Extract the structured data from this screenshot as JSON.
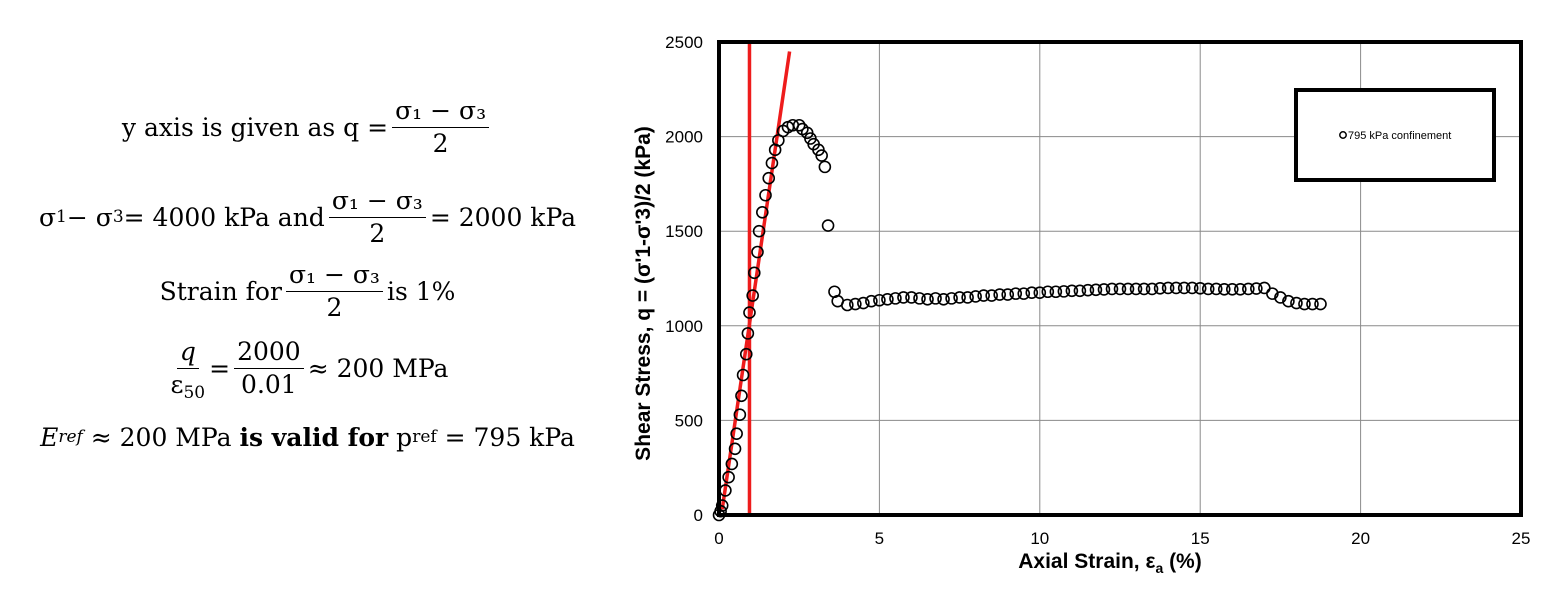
{
  "equations": {
    "l1_prefix": "y axis is given as q =",
    "l1_num": "σ₁ − σ₃",
    "l1_den": "2",
    "l2_a": "σ",
    "l2_a_sub": "1",
    "l2_b": " − σ",
    "l2_b_sub": "3",
    "l2_c": " = 4000 kPa and",
    "l2_num": "σ₁ − σ₃",
    "l2_den": "2",
    "l2_d": "= 2000 kPa",
    "l3_prefix": "Strain for",
    "l3_num": "σ₁ − σ₃",
    "l3_den": "2",
    "l3_suffix": "is 1%",
    "l4_num1": "q",
    "l4_den1": "ε",
    "l4_den1_sub": "50",
    "l4_eq": "=",
    "l4_num2": "2000",
    "l4_den2": "0.01",
    "l4_suffix": "≈ 200 MPa",
    "l5_E": "E",
    "l5_E_sub": "ref",
    "l5_a": " ≈ 200 MPa ",
    "l5_bold": "is valid for",
    "l5_p": " p",
    "l5_p_sub": "ref",
    "l5_b": " = 795 kPa"
  },
  "chart_data": {
    "type": "scatter",
    "xlabel": "Axial Strain, ε",
    "xlabel_sub": "a",
    "xlabel_suffix": " (%)",
    "ylabel": "Shear Stress, q = (σ'1-σ'3)/2 (kPa)",
    "xlim": [
      0,
      25
    ],
    "ylim": [
      0,
      2500
    ],
    "xticks": [
      0,
      5,
      10,
      15,
      20,
      25
    ],
    "yticks": [
      0,
      500,
      1000,
      1500,
      2000,
      2500
    ],
    "grid": true,
    "legend_position": "top-right",
    "legend_entries": [
      "795 kPa confinement"
    ],
    "series": [
      {
        "name": "795 kPa confinement",
        "marker": "open-circle",
        "color": "#000000",
        "points": [
          [
            0,
            0
          ],
          [
            0.05,
            20
          ],
          [
            0.1,
            50
          ],
          [
            0.2,
            130
          ],
          [
            0.3,
            200
          ],
          [
            0.4,
            270
          ],
          [
            0.5,
            350
          ],
          [
            0.55,
            430
          ],
          [
            0.65,
            530
          ],
          [
            0.7,
            630
          ],
          [
            0.75,
            740
          ],
          [
            0.85,
            850
          ],
          [
            0.9,
            960
          ],
          [
            0.95,
            1070
          ],
          [
            1.05,
            1160
          ],
          [
            1.1,
            1280
          ],
          [
            1.2,
            1390
          ],
          [
            1.25,
            1500
          ],
          [
            1.35,
            1600
          ],
          [
            1.45,
            1690
          ],
          [
            1.55,
            1780
          ],
          [
            1.65,
            1860
          ],
          [
            1.75,
            1930
          ],
          [
            1.85,
            1980
          ],
          [
            2.0,
            2030
          ],
          [
            2.15,
            2050
          ],
          [
            2.3,
            2060
          ],
          [
            2.5,
            2060
          ],
          [
            2.6,
            2040
          ],
          [
            2.75,
            2020
          ],
          [
            2.85,
            1990
          ],
          [
            2.95,
            1960
          ],
          [
            3.1,
            1930
          ],
          [
            3.2,
            1900
          ],
          [
            3.3,
            1840
          ],
          [
            3.4,
            1530
          ],
          [
            3.6,
            1180
          ],
          [
            3.7,
            1130
          ],
          [
            4.0,
            1110
          ],
          [
            4.25,
            1115
          ],
          [
            4.5,
            1120
          ],
          [
            4.75,
            1130
          ],
          [
            5.0,
            1135
          ],
          [
            5.25,
            1140
          ],
          [
            5.5,
            1145
          ],
          [
            5.75,
            1150
          ],
          [
            6.0,
            1150
          ],
          [
            6.25,
            1145
          ],
          [
            6.5,
            1140
          ],
          [
            6.75,
            1145
          ],
          [
            7.0,
            1140
          ],
          [
            7.25,
            1145
          ],
          [
            7.5,
            1150
          ],
          [
            7.75,
            1150
          ],
          [
            8.0,
            1155
          ],
          [
            8.25,
            1160
          ],
          [
            8.5,
            1160
          ],
          [
            8.75,
            1165
          ],
          [
            9.0,
            1165
          ],
          [
            9.25,
            1170
          ],
          [
            9.5,
            1170
          ],
          [
            9.75,
            1175
          ],
          [
            10.0,
            1175
          ],
          [
            10.25,
            1180
          ],
          [
            10.5,
            1180
          ],
          [
            10.75,
            1182
          ],
          [
            11.0,
            1185
          ],
          [
            11.25,
            1185
          ],
          [
            11.5,
            1188
          ],
          [
            11.75,
            1190
          ],
          [
            12.0,
            1192
          ],
          [
            12.25,
            1195
          ],
          [
            12.5,
            1195
          ],
          [
            12.75,
            1195
          ],
          [
            13.0,
            1195
          ],
          [
            13.25,
            1195
          ],
          [
            13.5,
            1195
          ],
          [
            13.75,
            1198
          ],
          [
            14.0,
            1200
          ],
          [
            14.25,
            1200
          ],
          [
            14.5,
            1200
          ],
          [
            14.75,
            1200
          ],
          [
            15.0,
            1198
          ],
          [
            15.25,
            1195
          ],
          [
            15.5,
            1195
          ],
          [
            15.75,
            1193
          ],
          [
            16.0,
            1193
          ],
          [
            16.25,
            1193
          ],
          [
            16.5,
            1195
          ],
          [
            16.75,
            1197
          ],
          [
            17.0,
            1200
          ],
          [
            17.25,
            1170
          ],
          [
            17.5,
            1150
          ],
          [
            17.75,
            1130
          ],
          [
            18.0,
            1120
          ],
          [
            18.25,
            1115
          ],
          [
            18.5,
            1115
          ],
          [
            18.75,
            1115
          ]
        ]
      }
    ],
    "annotations": [
      {
        "type": "line",
        "color": "#ee1c1c",
        "from": [
          0.95,
          0
        ],
        "to": [
          0.95,
          2500
        ]
      },
      {
        "type": "line",
        "color": "#ee1c1c",
        "from": [
          0.1,
          30
        ],
        "to": [
          2.2,
          2450
        ]
      }
    ]
  }
}
